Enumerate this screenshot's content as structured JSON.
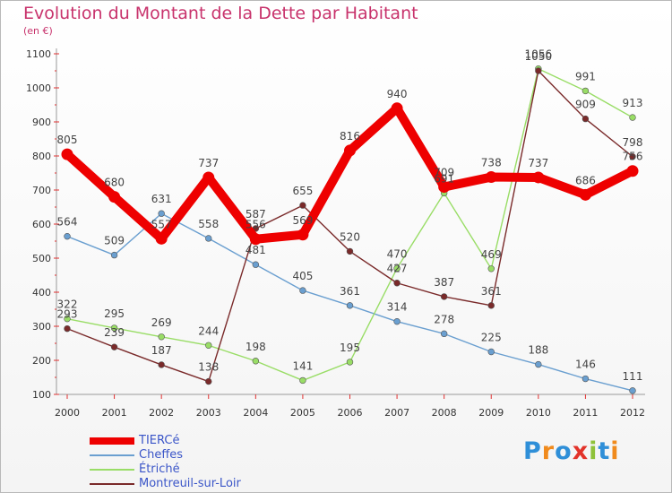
{
  "title": "Evolution du Montant de la Dette par Habitant",
  "unit_label": "(en €)",
  "brand": {
    "text": "Proxiti",
    "letters": [
      "P",
      "r",
      "o",
      "x",
      "i",
      "t",
      "i"
    ],
    "colors": [
      "#2f8fd8",
      "#f08a1c",
      "#2f8fd8",
      "#e2332a",
      "#8fc23a",
      "#2f8fd8",
      "#f08a1c"
    ]
  },
  "chart_data": {
    "type": "line",
    "title": "Evolution du Montant de la Dette par Habitant",
    "ylabel": "(en €)",
    "xlabel": "",
    "x": [
      "2000",
      "2001",
      "2002",
      "2003",
      "2004",
      "2005",
      "2006",
      "2007",
      "2008",
      "2009",
      "2010",
      "2011",
      "2012"
    ],
    "ylim": [
      100,
      1100
    ],
    "yticks": [
      100,
      200,
      300,
      400,
      500,
      600,
      700,
      800,
      900,
      1000,
      1100
    ],
    "grid": false,
    "legend_position": "bottom-left",
    "series": [
      {
        "name": "TIERCé",
        "color": "#ee0000",
        "values": [
          805,
          680,
          557,
          737,
          556,
          569,
          816,
          940,
          709,
          738,
          737,
          686,
          756
        ]
      },
      {
        "name": "Cheffes",
        "color": "#6a9fd0",
        "values": [
          564,
          509,
          631,
          558,
          481,
          405,
          361,
          314,
          278,
          225,
          188,
          146,
          111
        ]
      },
      {
        "name": "Étriché",
        "color": "#99dd66",
        "values": [
          322,
          295,
          269,
          244,
          198,
          141,
          195,
          470,
          691,
          469,
          1056,
          991,
          913
        ]
      },
      {
        "name": "Montreuil-sur-Loir",
        "color": "#7a2a2a",
        "values": [
          293,
          239,
          187,
          138,
          587,
          655,
          520,
          427,
          387,
          361,
          1050,
          909,
          798
        ]
      }
    ]
  }
}
